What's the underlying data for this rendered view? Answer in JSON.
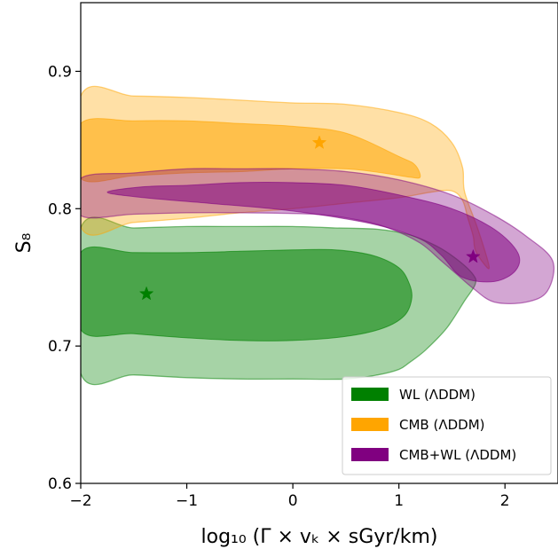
{
  "chart_data": {
    "type": "contour",
    "title": "",
    "xlabel": "log₁₀ (Γ × vₖ × sGyr/km)",
    "ylabel": "S₈",
    "xlim": [
      -2,
      2.5
    ],
    "ylim": [
      0.6,
      0.95
    ],
    "x_ticks": [
      -2,
      -1,
      0,
      1,
      2
    ],
    "x_tick_labels": [
      "−2",
      "−1",
      "0",
      "1",
      "2"
    ],
    "y_ticks": [
      0.6,
      0.7,
      0.8,
      0.9
    ],
    "y_tick_labels": [
      "0.6",
      "0.7",
      "0.8",
      "0.9"
    ],
    "legend_position": "lower-right",
    "series": [
      {
        "name": "WL (ΛDDM)",
        "color": "#008000",
        "best_fit": [
          -1.38,
          0.738
        ],
        "contour_95": [
          [
            -2,
            0.68
          ],
          [
            -1.5,
            0.679
          ],
          [
            -1,
            0.677
          ],
          [
            -0.5,
            0.676
          ],
          [
            0,
            0.676
          ],
          [
            0.5,
            0.676
          ],
          [
            0.8,
            0.679
          ],
          [
            1.0,
            0.683
          ],
          [
            1.1,
            0.688
          ],
          [
            1.25,
            0.697
          ],
          [
            1.45,
            0.713
          ],
          [
            1.62,
            0.733
          ],
          [
            1.72,
            0.745
          ],
          [
            1.7,
            0.752
          ],
          [
            1.55,
            0.763
          ],
          [
            1.35,
            0.773
          ],
          [
            1.1,
            0.781
          ],
          [
            0.8,
            0.785
          ],
          [
            0.4,
            0.786
          ],
          [
            0,
            0.787
          ],
          [
            -0.5,
            0.787
          ],
          [
            -1,
            0.787
          ],
          [
            -1.5,
            0.786
          ],
          [
            -2,
            0.786
          ]
        ],
        "contour_68": [
          [
            -2,
            0.712
          ],
          [
            -1.5,
            0.709
          ],
          [
            -1,
            0.706
          ],
          [
            -0.5,
            0.704
          ],
          [
            0,
            0.704
          ],
          [
            0.5,
            0.707
          ],
          [
            0.85,
            0.713
          ],
          [
            1.05,
            0.722
          ],
          [
            1.12,
            0.734
          ],
          [
            1.1,
            0.745
          ],
          [
            1.0,
            0.757
          ],
          [
            0.75,
            0.766
          ],
          [
            0.4,
            0.77
          ],
          [
            0,
            0.77
          ],
          [
            -0.5,
            0.769
          ],
          [
            -1,
            0.768
          ],
          [
            -1.5,
            0.768
          ],
          [
            -2,
            0.768
          ]
        ]
      },
      {
        "name": "CMB (ΛDDM)",
        "color": "#FFA500",
        "best_fit": [
          0.25,
          0.848
        ],
        "contour_95": [
          [
            -2,
            0.787
          ],
          [
            -1.5,
            0.79
          ],
          [
            -1,
            0.793
          ],
          [
            -0.5,
            0.797
          ],
          [
            0,
            0.8
          ],
          [
            0.5,
            0.804
          ],
          [
            1.0,
            0.808
          ],
          [
            1.3,
            0.812
          ],
          [
            1.5,
            0.813
          ],
          [
            1.6,
            0.806
          ],
          [
            1.65,
            0.793
          ],
          [
            1.7,
            0.78
          ],
          [
            1.72,
            0.77
          ],
          [
            1.8,
            0.76
          ],
          [
            1.85,
            0.758
          ],
          [
            1.75,
            0.784
          ],
          [
            1.62,
            0.812
          ],
          [
            1.6,
            0.83
          ],
          [
            1.5,
            0.848
          ],
          [
            1.3,
            0.862
          ],
          [
            1.0,
            0.87
          ],
          [
            0.5,
            0.876
          ],
          [
            0,
            0.877
          ],
          [
            -0.5,
            0.879
          ],
          [
            -1,
            0.881
          ],
          [
            -1.5,
            0.882
          ],
          [
            -2,
            0.882
          ]
        ],
        "contour_68": [
          [
            -2,
            0.822
          ],
          [
            -1.5,
            0.824
          ],
          [
            -1,
            0.826
          ],
          [
            -0.5,
            0.827
          ],
          [
            0,
            0.829
          ],
          [
            0.5,
            0.829
          ],
          [
            0.85,
            0.826
          ],
          [
            1.1,
            0.823
          ],
          [
            1.2,
            0.823
          ],
          [
            1.15,
            0.832
          ],
          [
            1.0,
            0.838
          ],
          [
            0.5,
            0.855
          ],
          [
            0,
            0.86
          ],
          [
            -0.5,
            0.862
          ],
          [
            -1,
            0.864
          ],
          [
            -1.5,
            0.864
          ],
          [
            -2,
            0.862
          ]
        ]
      },
      {
        "name": "CMB+WL (ΛDDM)",
        "color": "#800080",
        "best_fit": [
          1.7,
          0.765
        ],
        "contour_95": [
          [
            -2,
            0.822
          ],
          [
            -1.5,
            0.826
          ],
          [
            -1,
            0.829
          ],
          [
            -0.5,
            0.829
          ],
          [
            0,
            0.829
          ],
          [
            0.5,
            0.827
          ],
          [
            1.0,
            0.821
          ],
          [
            1.5,
            0.81
          ],
          [
            1.9,
            0.795
          ],
          [
            2.2,
            0.78
          ],
          [
            2.45,
            0.762
          ],
          [
            2.4,
            0.74
          ],
          [
            2.2,
            0.732
          ],
          [
            1.9,
            0.732
          ],
          [
            1.7,
            0.742
          ],
          [
            1.55,
            0.752
          ],
          [
            1.4,
            0.762
          ],
          [
            1.2,
            0.775
          ],
          [
            0.9,
            0.786
          ],
          [
            0.6,
            0.792
          ],
          [
            0.2,
            0.796
          ],
          [
            -0.5,
            0.797
          ],
          [
            -1,
            0.797
          ],
          [
            -1.5,
            0.796
          ],
          [
            -2,
            0.795
          ]
        ],
        "contour_68": [
          [
            -1.75,
            0.812
          ],
          [
            -1.4,
            0.816
          ],
          [
            -1,
            0.817
          ],
          [
            -0.5,
            0.819
          ],
          [
            0,
            0.819
          ],
          [
            0.5,
            0.817
          ],
          [
            1.0,
            0.81
          ],
          [
            1.5,
            0.8
          ],
          [
            1.9,
            0.785
          ],
          [
            2.12,
            0.768
          ],
          [
            2.1,
            0.755
          ],
          [
            1.9,
            0.747
          ],
          [
            1.6,
            0.75
          ],
          [
            1.4,
            0.766
          ],
          [
            1.2,
            0.778
          ],
          [
            0.8,
            0.788
          ],
          [
            0.3,
            0.795
          ],
          [
            -0.2,
            0.8
          ],
          [
            -0.8,
            0.804
          ],
          [
            -1.4,
            0.808
          ]
        ]
      }
    ]
  }
}
